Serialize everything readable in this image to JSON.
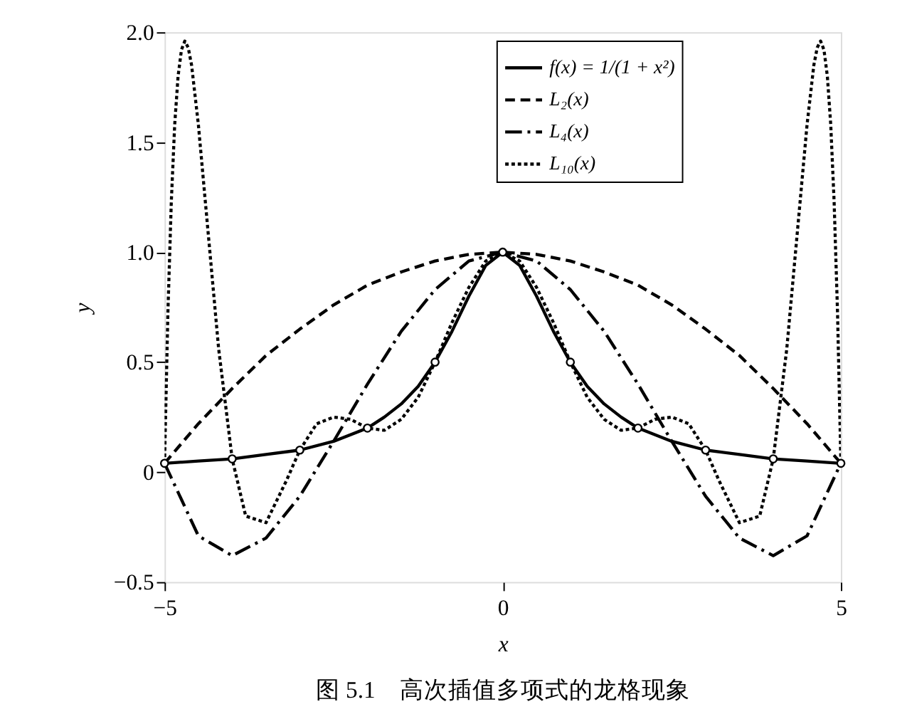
{
  "chart_data": {
    "type": "line",
    "xlabel": "x",
    "ylabel": "y",
    "annotations": [
      "图 5.1　高次插值多项式的龙格现象"
    ],
    "xlim": [
      -5,
      5
    ],
    "xticks": [
      {
        "value": -5,
        "label": "−5"
      },
      0,
      5
    ],
    "ylim": [
      -0.5,
      2.0
    ],
    "yticks": [
      {
        "value": -0.5,
        "label": "−0.5"
      },
      {
        "value": 0,
        "label": "0"
      },
      0.5,
      {
        "value": 1,
        "label": "1.0"
      },
      1.5,
      {
        "value": 2,
        "label": "2.0"
      }
    ],
    "grid": false,
    "legend": "top right",
    "series": [
      {
        "name": "f(x) = 1/(1 + x²)",
        "color": "#000000",
        "line_style": "solid",
        "x": [
          -5,
          -4.5,
          -4,
          -3.5,
          -3,
          -2.5,
          -2,
          -1.75,
          -1.5,
          -1.25,
          -1,
          -0.75,
          -0.5,
          -0.25,
          0,
          0.25,
          0.5,
          0.75,
          1,
          1.25,
          1.5,
          1.75,
          2,
          2.5,
          3,
          3.5,
          4,
          4.5,
          5
        ],
        "values": [
          0.04,
          0.05,
          0.06,
          0.08,
          0.1,
          0.14,
          0.2,
          0.25,
          0.31,
          0.39,
          0.5,
          0.64,
          0.8,
          0.94,
          1,
          0.94,
          0.8,
          0.64,
          0.5,
          0.39,
          0.31,
          0.25,
          0.2,
          0.14,
          0.1,
          0.08,
          0.06,
          0.05,
          0.04
        ]
      },
      {
        "name": "L₂(x)",
        "color": "#000000",
        "line_style": "dashed",
        "x": [
          -5,
          -4.5,
          -4,
          -3.5,
          -3,
          -2.5,
          -2,
          -1.5,
          -1,
          -0.5,
          0,
          0.5,
          1,
          1.5,
          2,
          2.5,
          3,
          3.5,
          4,
          4.5,
          5
        ],
        "values": [
          0.04,
          0.22,
          0.38,
          0.53,
          0.65,
          0.76,
          0.85,
          0.91,
          0.96,
          0.99,
          1,
          0.99,
          0.96,
          0.91,
          0.85,
          0.76,
          0.65,
          0.53,
          0.38,
          0.22,
          0.04
        ]
      },
      {
        "name": "L₄(x)",
        "color": "#000000",
        "line_style": "dashdot",
        "x": [
          -5,
          -4.5,
          -4,
          -3.5,
          -3,
          -2.5,
          -2,
          -1.5,
          -1,
          -0.5,
          0,
          0.5,
          1,
          1.5,
          2,
          2.5,
          3,
          3.5,
          4,
          4.5,
          5
        ],
        "values": [
          0.04,
          -0.29,
          -0.38,
          -0.3,
          -0.11,
          0.14,
          0.4,
          0.64,
          0.83,
          0.96,
          1,
          0.96,
          0.83,
          0.64,
          0.4,
          0.14,
          -0.11,
          -0.3,
          -0.38,
          -0.29,
          0.04
        ]
      },
      {
        "name": "L₁₀(x)",
        "color": "#000000",
        "line_style": "dotted",
        "x": [
          -5,
          -4.95,
          -4.9,
          -4.85,
          -4.8,
          -4.75,
          -4.7,
          -4.65,
          -4.6,
          -4.5,
          -4.4,
          -4.2,
          -4,
          -3.8,
          -3.5,
          -3.2,
          -3,
          -2.75,
          -2.5,
          -2.25,
          -2,
          -1.75,
          -1.5,
          -1.25,
          -1,
          -0.75,
          -0.5,
          -0.25,
          0,
          0.25,
          0.5,
          0.75,
          1,
          1.25,
          1.5,
          1.75,
          2,
          2.25,
          2.5,
          2.75,
          3,
          3.2,
          3.5,
          3.8,
          4,
          4.2,
          4.4,
          4.5,
          4.6,
          4.65,
          4.7,
          4.75,
          4.8,
          4.85,
          4.9,
          4.95,
          5
        ],
        "values": [
          0.04,
          0.73,
          1.23,
          1.58,
          1.8,
          1.92,
          1.96,
          1.93,
          1.85,
          1.58,
          1.24,
          0.56,
          0.06,
          -0.2,
          -0.23,
          -0.04,
          0.1,
          0.22,
          0.25,
          0.24,
          0.2,
          0.19,
          0.24,
          0.34,
          0.5,
          0.68,
          0.84,
          0.96,
          1,
          0.96,
          0.84,
          0.68,
          0.5,
          0.34,
          0.24,
          0.19,
          0.2,
          0.24,
          0.25,
          0.22,
          0.1,
          -0.04,
          -0.23,
          -0.2,
          0.06,
          0.56,
          1.24,
          1.58,
          1.85,
          1.93,
          1.96,
          1.92,
          1.8,
          1.58,
          1.23,
          0.73,
          0.04
        ]
      },
      {
        "type": "scatter",
        "marker": "circle",
        "color": "#000000",
        "x": [
          -5,
          -4,
          -3,
          -2,
          -1,
          0,
          1,
          2,
          3,
          4,
          5
        ],
        "values": [
          0.04,
          0.06,
          0.1,
          0.2,
          0.5,
          1,
          0.5,
          0.2,
          0.1,
          0.06,
          0.04
        ]
      }
    ]
  }
}
